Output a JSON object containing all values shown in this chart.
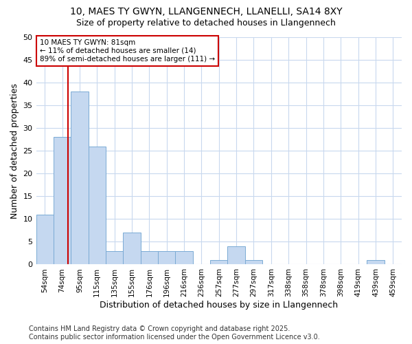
{
  "title1": "10, MAES TY GWYN, LLANGENNECH, LLANELLI, SA14 8XY",
  "title2": "Size of property relative to detached houses in Llangennech",
  "xlabel": "Distribution of detached houses by size in Llangennech",
  "ylabel": "Number of detached properties",
  "bins": [
    "54sqm",
    "74sqm",
    "95sqm",
    "115sqm",
    "135sqm",
    "155sqm",
    "176sqm",
    "196sqm",
    "216sqm",
    "236sqm",
    "257sqm",
    "277sqm",
    "297sqm",
    "317sqm",
    "338sqm",
    "358sqm",
    "378sqm",
    "398sqm",
    "419sqm",
    "439sqm",
    "459sqm"
  ],
  "values": [
    11,
    28,
    38,
    26,
    3,
    7,
    3,
    3,
    3,
    0,
    1,
    4,
    1,
    0,
    0,
    0,
    0,
    0,
    0,
    1,
    0
  ],
  "bar_color": "#c5d8f0",
  "bar_edge_color": "#7aaad4",
  "vline_color": "#cc0000",
  "vline_x": 1.35,
  "ann_line1": "10 MAES TY GWYN: 81sqm",
  "ann_line2": "← 11% of detached houses are smaller (14)",
  "ann_line3": "89% of semi-detached houses are larger (111) →",
  "ann_box_fc": "#ffffff",
  "ann_box_ec": "#cc0000",
  "ylim": [
    0,
    50
  ],
  "yticks": [
    0,
    5,
    10,
    15,
    20,
    25,
    30,
    35,
    40,
    45,
    50
  ],
  "footer": "Contains HM Land Registry data © Crown copyright and database right 2025.\nContains public sector information licensed under the Open Government Licence v3.0.",
  "fig_bg": "#ffffff",
  "plot_bg": "#ffffff",
  "grid_color": "#c8d8ee"
}
